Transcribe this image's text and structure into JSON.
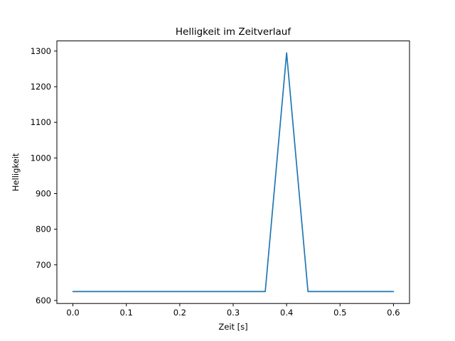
{
  "chart_data": {
    "type": "line",
    "title": "Helligkeit im Zeitverlauf",
    "xlabel": "Zeit [s]",
    "ylabel": "Helligkeit",
    "x": [
      0.0,
      0.36,
      0.4,
      0.44,
      0.6
    ],
    "y": [
      625,
      625,
      1295,
      625,
      625
    ],
    "xticks": [
      0.0,
      0.1,
      0.2,
      0.3,
      0.4,
      0.5,
      0.6
    ],
    "yticks": [
      600,
      700,
      800,
      900,
      1000,
      1100,
      1200,
      1300
    ],
    "xlim": [
      -0.03,
      0.63
    ],
    "ylim": [
      591.5,
      1328.5
    ],
    "line_color": "#1f77b4",
    "frame_color": "#000000",
    "background_color": "#ffffff",
    "grid": false,
    "legend": null
  }
}
